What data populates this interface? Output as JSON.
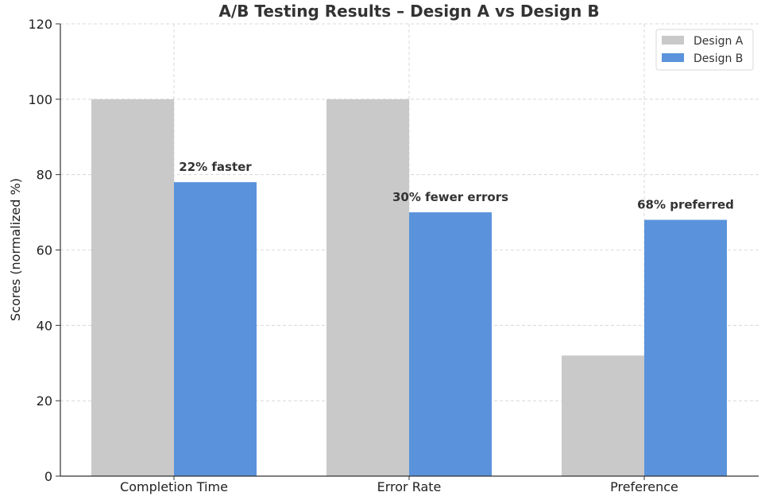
{
  "chart_data": {
    "type": "bar",
    "title": "A/B Testing Results – Design A vs Design B",
    "xlabel": "",
    "ylabel": "Scores (normalized %)",
    "categories": [
      "Completion Time",
      "Error Rate",
      "Preference"
    ],
    "series": [
      {
        "name": "Design A",
        "color": "#c9c9c9",
        "values": [
          100,
          100,
          32
        ]
      },
      {
        "name": "Design B",
        "color": "#5a93dc",
        "values": [
          78,
          70,
          68
        ]
      }
    ],
    "annotations": [
      "22% faster",
      "30% fewer errors",
      "68% preferred"
    ],
    "ylim": [
      0,
      120
    ],
    "yticks": [
      0,
      20,
      40,
      60,
      80,
      100,
      120
    ],
    "grid": true,
    "legend_position": "top-right"
  }
}
